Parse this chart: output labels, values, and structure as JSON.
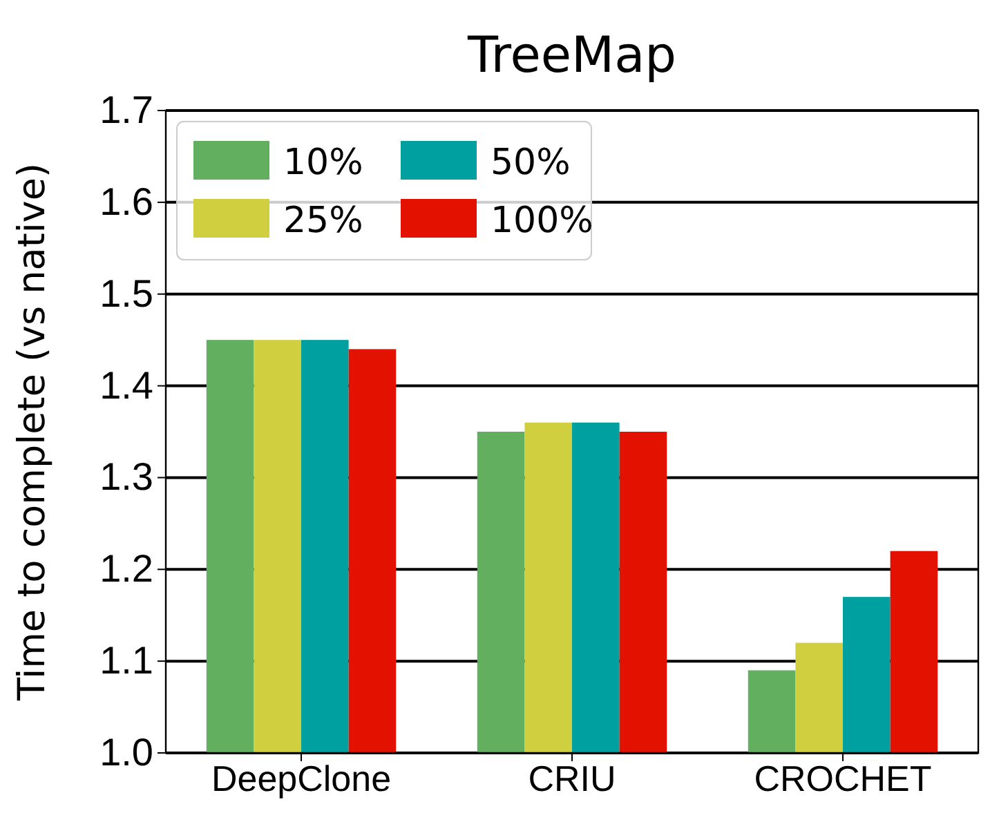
{
  "chart_data": {
    "type": "bar",
    "title": "TreeMap",
    "ylabel": "Time to complete (vs native)",
    "categories": [
      "DeepClone",
      "CRIU",
      "CROCHET"
    ],
    "series": [
      {
        "name": "10%",
        "color": "#62af5f",
        "values": [
          1.45,
          1.35,
          1.09
        ]
      },
      {
        "name": "25%",
        "color": "#d0cf40",
        "values": [
          1.45,
          1.36,
          1.12
        ]
      },
      {
        "name": "50%",
        "color": "#00a0a0",
        "values": [
          1.45,
          1.36,
          1.17
        ]
      },
      {
        "name": "100%",
        "color": "#e31200",
        "values": [
          1.44,
          1.35,
          1.22
        ]
      }
    ],
    "ylim": [
      1.0,
      1.7
    ],
    "yticks": [
      {
        "value": 1.0,
        "label": "1.0"
      },
      1.1,
      1.2,
      1.3,
      1.4,
      1.5,
      1.6,
      1.7
    ],
    "grid": "y",
    "legend": "top left"
  }
}
